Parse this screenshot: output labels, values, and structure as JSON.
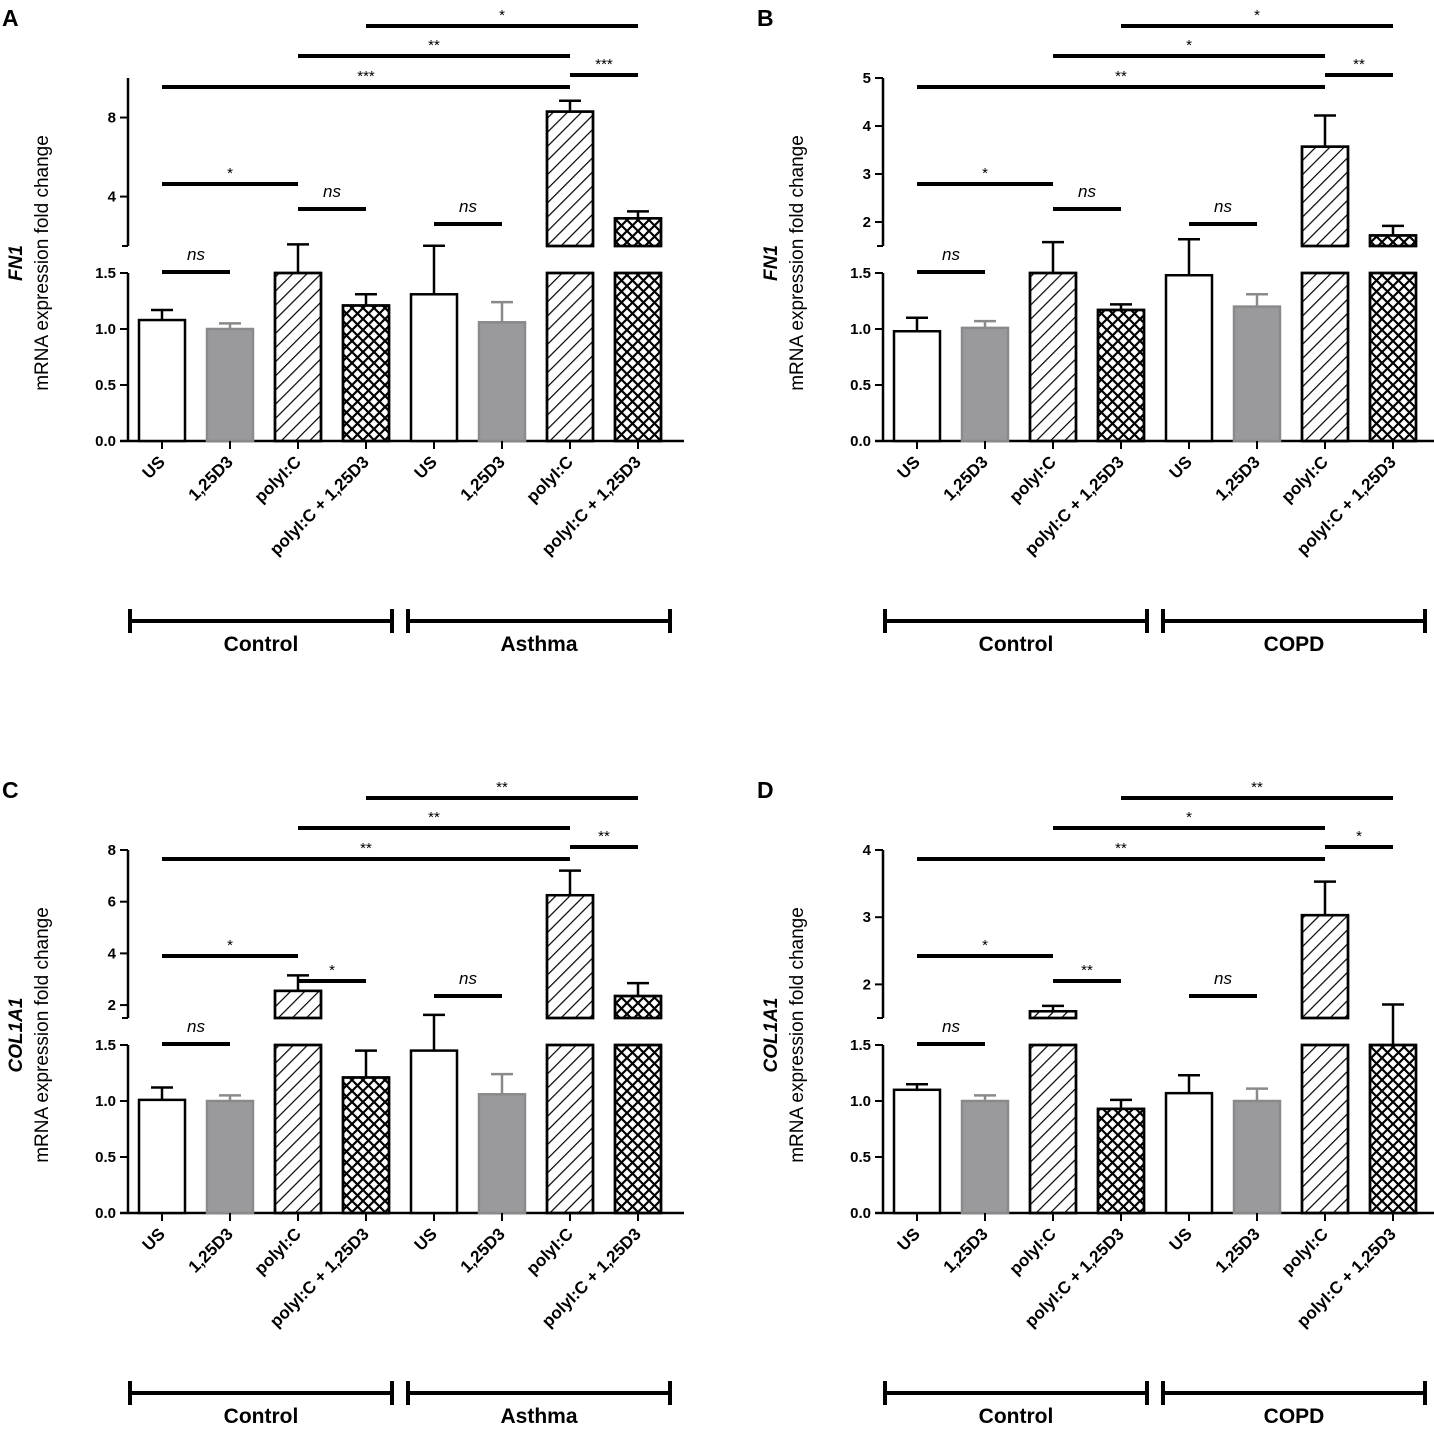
{
  "figure": {
    "panels": [
      "A",
      "B",
      "C",
      "D"
    ]
  },
  "chart_data": [
    {
      "panel": "A",
      "type": "bar",
      "gene": "FN1",
      "ylabel": "mRNA expression fold change",
      "broken_axis": true,
      "lower_ylim": [
        0,
        1.5
      ],
      "lower_ticks": [
        "0.0",
        "0.5",
        "1.0",
        "1.5"
      ],
      "upper_ylim": [
        1.5,
        10
      ],
      "upper_ticks": [
        "4",
        "8"
      ],
      "categories": [
        "US",
        "1,25D3",
        "polyI:C",
        "polyI:C + 1,25D3",
        "US",
        "1,25D3",
        "polyI:C",
        "polyI:C + 1,25D3"
      ],
      "values": [
        1.08,
        1.0,
        1.5,
        1.21,
        1.31,
        1.06,
        8.3,
        2.9
      ],
      "errors": [
        0.09,
        0.05,
        0.08,
        0.1,
        0.2,
        0.18,
        0.55,
        0.35
      ],
      "fills": [
        "white",
        "gray",
        "hatch",
        "cross",
        "white",
        "gray",
        "hatch",
        "cross"
      ],
      "groups": [
        {
          "label": "Control",
          "from": 0,
          "to": 3
        },
        {
          "label": "Asthma",
          "from": 4,
          "to": 7
        }
      ],
      "comparisons": [
        {
          "from": 0,
          "to": 1,
          "label": "ns"
        },
        {
          "from": 0,
          "to": 2,
          "label": "*"
        },
        {
          "from": 2,
          "to": 3,
          "label": "ns"
        },
        {
          "from": 4,
          "to": 5,
          "label": "ns"
        },
        {
          "from": 0,
          "to": 6,
          "label": "***"
        },
        {
          "from": 6,
          "to": 7,
          "label": "***"
        },
        {
          "from": 2,
          "to": 6,
          "label": "**"
        },
        {
          "from": 3,
          "to": 7,
          "label": "*"
        }
      ]
    },
    {
      "panel": "B",
      "type": "bar",
      "gene": "FN1",
      "ylabel": "mRNA expression fold change",
      "broken_axis": true,
      "lower_ylim": [
        0,
        1.5
      ],
      "lower_ticks": [
        "0.0",
        "0.5",
        "1.0",
        "1.5"
      ],
      "upper_ylim": [
        1.5,
        5
      ],
      "upper_ticks": [
        "2",
        "3",
        "4",
        "5"
      ],
      "categories": [
        "US",
        "1,25D3",
        "polyI:C",
        "polyI:C + 1,25D3",
        "US",
        "1,25D3",
        "polyI:C",
        "polyI:C + 1,25D3"
      ],
      "values": [
        0.98,
        1.01,
        1.5,
        1.17,
        1.48,
        1.2,
        3.57,
        1.72
      ],
      "errors": [
        0.12,
        0.06,
        0.08,
        0.05,
        0.16,
        0.11,
        0.65,
        0.2
      ],
      "fills": [
        "white",
        "gray",
        "hatch",
        "cross",
        "white",
        "gray",
        "hatch",
        "cross"
      ],
      "groups": [
        {
          "label": "Control",
          "from": 0,
          "to": 3
        },
        {
          "label": "COPD",
          "from": 4,
          "to": 7
        }
      ],
      "comparisons": [
        {
          "from": 0,
          "to": 1,
          "label": "ns"
        },
        {
          "from": 0,
          "to": 2,
          "label": "*"
        },
        {
          "from": 2,
          "to": 3,
          "label": "ns"
        },
        {
          "from": 4,
          "to": 5,
          "label": "ns"
        },
        {
          "from": 0,
          "to": 6,
          "label": "**"
        },
        {
          "from": 6,
          "to": 7,
          "label": "**"
        },
        {
          "from": 2,
          "to": 6,
          "label": "*"
        },
        {
          "from": 3,
          "to": 7,
          "label": "*"
        }
      ]
    },
    {
      "panel": "C",
      "type": "bar",
      "gene": "COL1A1",
      "ylabel": "mRNA expression fold change",
      "broken_axis": true,
      "lower_ylim": [
        0,
        1.5
      ],
      "lower_ticks": [
        "0.0",
        "0.5",
        "1.0",
        "1.5"
      ],
      "upper_ylim": [
        1.5,
        8
      ],
      "upper_ticks": [
        "2",
        "4",
        "6",
        "8"
      ],
      "categories": [
        "US",
        "1,25D3",
        "polyI:C",
        "polyI:C + 1,25D3",
        "US",
        "1,25D3",
        "polyI:C",
        "polyI:C + 1,25D3"
      ],
      "values": [
        1.01,
        1.0,
        2.55,
        1.21,
        1.45,
        1.06,
        6.25,
        2.35
      ],
      "errors": [
        0.11,
        0.05,
        0.6,
        0.24,
        0.17,
        0.18,
        0.95,
        0.5
      ],
      "fills": [
        "white",
        "gray",
        "hatch",
        "cross",
        "white",
        "gray",
        "hatch",
        "cross"
      ],
      "groups": [
        {
          "label": "Control",
          "from": 0,
          "to": 3
        },
        {
          "label": "Asthma",
          "from": 4,
          "to": 7
        }
      ],
      "comparisons": [
        {
          "from": 0,
          "to": 1,
          "label": "ns"
        },
        {
          "from": 0,
          "to": 2,
          "label": "*"
        },
        {
          "from": 2,
          "to": 3,
          "label": "*"
        },
        {
          "from": 4,
          "to": 5,
          "label": "ns"
        },
        {
          "from": 0,
          "to": 6,
          "label": "**"
        },
        {
          "from": 6,
          "to": 7,
          "label": "**"
        },
        {
          "from": 2,
          "to": 6,
          "label": "**"
        },
        {
          "from": 3,
          "to": 7,
          "label": "**"
        }
      ]
    },
    {
      "panel": "D",
      "type": "bar",
      "gene": "COL1A1",
      "ylabel": "mRNA expression fold change",
      "broken_axis": true,
      "lower_ylim": [
        0,
        1.5
      ],
      "lower_ticks": [
        "0.0",
        "0.5",
        "1.0",
        "1.5"
      ],
      "upper_ylim": [
        1.5,
        4
      ],
      "upper_ticks": [
        "2",
        "3",
        "4"
      ],
      "categories": [
        "US",
        "1,25D3",
        "polyI:C",
        "polyI:C + 1,25D3",
        "US",
        "1,25D3",
        "polyI:C",
        "polyI:C + 1,25D3"
      ],
      "values": [
        1.1,
        1.0,
        1.6,
        0.93,
        1.07,
        1.0,
        3.03,
        1.5
      ],
      "errors": [
        0.05,
        0.05,
        0.08,
        0.08,
        0.16,
        0.11,
        0.5,
        0.2
      ],
      "fills": [
        "white",
        "gray",
        "hatch",
        "cross",
        "white",
        "gray",
        "hatch",
        "cross"
      ],
      "groups": [
        {
          "label": "Control",
          "from": 0,
          "to": 3
        },
        {
          "label": "COPD",
          "from": 4,
          "to": 7
        }
      ],
      "comparisons": [
        {
          "from": 0,
          "to": 1,
          "label": "ns"
        },
        {
          "from": 0,
          "to": 2,
          "label": "*"
        },
        {
          "from": 2,
          "to": 3,
          "label": "**"
        },
        {
          "from": 4,
          "to": 5,
          "label": "ns"
        },
        {
          "from": 0,
          "to": 6,
          "label": "**"
        },
        {
          "from": 6,
          "to": 7,
          "label": "*"
        },
        {
          "from": 2,
          "to": 6,
          "label": "*"
        },
        {
          "from": 3,
          "to": 7,
          "label": "**"
        }
      ]
    }
  ]
}
